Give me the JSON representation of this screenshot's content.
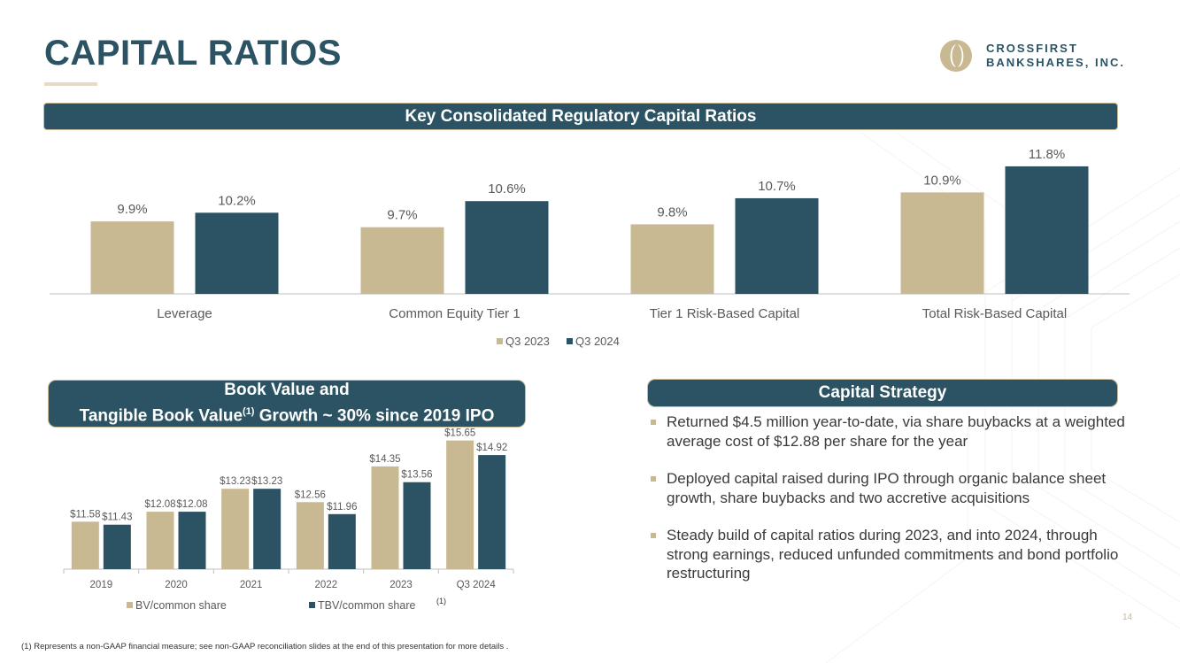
{
  "header": {
    "title": "CAPITAL RATIOS",
    "logo_line1": "CROSSFIRST",
    "logo_line2": "BANKSHARES, INC."
  },
  "colors": {
    "accent": "#2b5363",
    "tan": "#c8b993",
    "axis": "#bfbfbf",
    "label": "#5a5a5a"
  },
  "banners": {
    "top": "Key Consolidated Regulatory Capital Ratios",
    "bv_line1": "Book Value and",
    "bv_line2_pre": "Tangible Book Value",
    "bv_sup": "(1)",
    "bv_line2_post": " Growth ~ 30% since 2019 IPO",
    "strategy": "Capital Strategy"
  },
  "chart_data": [
    {
      "type": "bar",
      "title": "Key Consolidated Regulatory Capital Ratios",
      "categories": [
        "Leverage",
        "Common Equity Tier 1",
        "Tier 1 Risk-Based Capital",
        "Total Risk-Based Capital"
      ],
      "series": [
        {
          "name": "Q3 2023",
          "values": [
            9.9,
            9.7,
            9.8,
            10.9
          ],
          "labels": [
            "9.9%",
            "9.7%",
            "9.8%",
            "10.9%"
          ]
        },
        {
          "name": "Q3 2024",
          "values": [
            10.2,
            10.6,
            10.7,
            11.8
          ],
          "labels": [
            "10.2%",
            "10.6%",
            "10.7%",
            "11.8%"
          ]
        }
      ],
      "ylim": [
        7.4,
        12.5
      ],
      "legend": "bottom"
    },
    {
      "type": "bar",
      "title": "Book Value and Tangible Book Value Growth ~ 30% since 2019 IPO",
      "categories": [
        "2019",
        "2020",
        "2021",
        "2022",
        "2023",
        "Q3 2024"
      ],
      "series": [
        {
          "name": "BV/common share",
          "values": [
            11.58,
            12.08,
            13.23,
            12.56,
            14.35,
            15.65
          ],
          "labels": [
            "$11.58",
            "$12.08",
            "$13.23",
            "$12.56",
            "$14.35",
            "$15.65"
          ]
        },
        {
          "name": "TBV/common share",
          "values": [
            11.43,
            12.08,
            13.23,
            11.96,
            13.56,
            14.92
          ],
          "labels": [
            "$11.43",
            "$12.08",
            "$13.23",
            "$11.96",
            "$13.56",
            "$14.92"
          ]
        }
      ],
      "ylim": [
        9.2,
        15.9
      ],
      "legend": "bottom",
      "legend_sup": "(1)"
    }
  ],
  "strategy": {
    "items": [
      "Returned $4.5 million year-to-date, via share buybacks at a weighted average cost of $12.88 per share for the year",
      "Deployed capital raised during IPO through organic balance sheet growth, share buybacks and two accretive acquisitions",
      "Steady build of capital ratios during 2023, and into 2024, through strong earnings, reduced unfunded commitments and bond portfolio restructuring"
    ]
  },
  "page_number": "14",
  "footnote": "(1) Represents a non-GAAP financial measure; see non-GAAP reconciliation slides at the end of this presentation for more details ."
}
